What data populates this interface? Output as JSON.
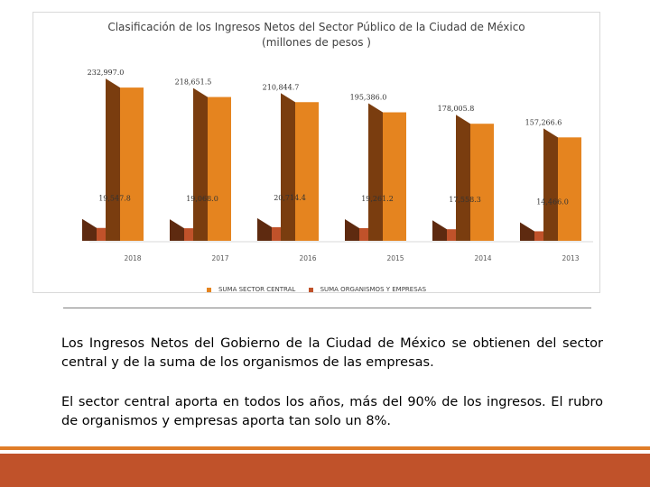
{
  "slide": {
    "paragraphs": [
      "Los Ingresos Netos del Gobierno de la Ciudad de México se obtienen del sector central y de la suma de los organismos de las empresas.",
      "El sector central aporta en todos los años, más del 90% de los ingresos. El rubro de organismos y empresas aporta tan solo un 8%."
    ]
  },
  "chart_data": {
    "type": "bar",
    "title": "Clasificación de los Ingresos Netos del Sector Público de la Ciudad de México",
    "subtitle": "(millones de pesos )",
    "categories": [
      "2018",
      "2017",
      "2016",
      "2015",
      "2014",
      "2013"
    ],
    "series": [
      {
        "name": "SUMA SECTOR CENTRAL",
        "values": [
          232997.0,
          218651.5,
          210844.7,
          195386.0,
          178005.8,
          157266.6
        ],
        "labels": [
          "232,997.0",
          "218,651.5",
          "210,844.7",
          "195,386.0",
          "178,005.8",
          "157,266.6"
        ],
        "color": "#e5841f",
        "side_color": "#7a3d0f"
      },
      {
        "name": "SUMA ORGANISMOS Y EMPRESAS",
        "values": [
          19547.8,
          19068.0,
          20714.4,
          19261.2,
          17558.3,
          14466.0
        ],
        "labels": [
          "19,547.8",
          "19,068.0",
          "20,714.4",
          "19,261.2",
          "17,558.3",
          "14,466.0"
        ],
        "color": "#c0522a",
        "side_color": "#5e2a10"
      }
    ],
    "bar_style": "3d",
    "grid": false,
    "legend": "bottom"
  },
  "colors": {
    "accent_orange": "#e07d28",
    "footer_red": "#c0522a",
    "text": "#404040"
  }
}
